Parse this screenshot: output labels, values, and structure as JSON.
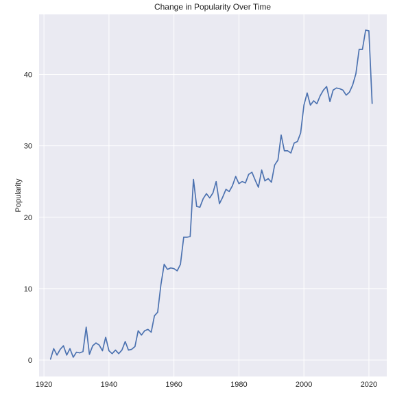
{
  "chart_data": {
    "type": "line",
    "title": "Change in Popularity Over Time",
    "xlabel": "",
    "ylabel": "Popularity",
    "xlim": [
      1918.5,
      2025.5
    ],
    "ylim": [
      -2.3,
      48.4
    ],
    "x_ticks": [
      1920,
      1940,
      1960,
      1980,
      2000,
      2020
    ],
    "y_ticks": [
      0,
      10,
      20,
      30,
      40
    ],
    "grid": true,
    "legend": "none",
    "colors": {
      "plot_background": "#eaeaf2",
      "grid": "#ffffff",
      "line": "#4c72b0"
    },
    "series": [
      {
        "x": [
          1922,
          1923,
          1924,
          1925,
          1926,
          1927,
          1928,
          1929,
          1930,
          1931,
          1932,
          1933,
          1934,
          1935,
          1936,
          1937,
          1938,
          1939,
          1940,
          1941,
          1942,
          1943,
          1944,
          1945,
          1946,
          1947,
          1948,
          1949,
          1950,
          1951,
          1952,
          1953,
          1954,
          1955,
          1956,
          1957,
          1958,
          1959,
          1960,
          1961,
          1962,
          1963,
          1964,
          1965,
          1966,
          1967,
          1968,
          1969,
          1970,
          1971,
          1972,
          1973,
          1974,
          1975,
          1976,
          1977,
          1978,
          1979,
          1980,
          1981,
          1982,
          1983,
          1984,
          1985,
          1986,
          1987,
          1988,
          1989,
          1990,
          1991,
          1992,
          1993,
          1994,
          1995,
          1996,
          1997,
          1998,
          1999,
          2000,
          2001,
          2002,
          2003,
          2004,
          2005,
          2006,
          2007,
          2008,
          2009,
          2010,
          2011,
          2012,
          2013,
          2014,
          2015,
          2016,
          2017,
          2018,
          2019,
          2020,
          2021
        ],
        "values": [
          0.1,
          1.6,
          0.7,
          1.5,
          2.0,
          0.7,
          1.6,
          0.4,
          1.1,
          1.0,
          1.2,
          4.6,
          0.8,
          2.0,
          2.4,
          2.1,
          1.3,
          3.2,
          1.3,
          0.9,
          1.4,
          0.9,
          1.4,
          2.6,
          1.4,
          1.5,
          1.9,
          4.1,
          3.5,
          4.1,
          4.3,
          3.9,
          6.2,
          6.7,
          10.6,
          13.4,
          12.7,
          12.9,
          12.8,
          12.5,
          13.4,
          17.2,
          17.2,
          17.3,
          25.3,
          21.5,
          21.4,
          22.6,
          23.3,
          22.7,
          23.4,
          25.0,
          21.9,
          22.8,
          23.9,
          23.6,
          24.4,
          25.7,
          24.7,
          25.0,
          24.8,
          26.0,
          26.3,
          25.2,
          24.2,
          26.6,
          25.1,
          25.4,
          24.9,
          27.3,
          28.0,
          31.5,
          29.3,
          29.3,
          29.0,
          30.4,
          30.6,
          31.8,
          35.7,
          37.4,
          35.7,
          36.3,
          35.9,
          37.0,
          37.8,
          38.3,
          36.2,
          37.8,
          38.1,
          38.0,
          37.8,
          37.1,
          37.5,
          38.5,
          40.1,
          43.5,
          43.5,
          46.2,
          46.1,
          35.9
        ]
      }
    ]
  }
}
